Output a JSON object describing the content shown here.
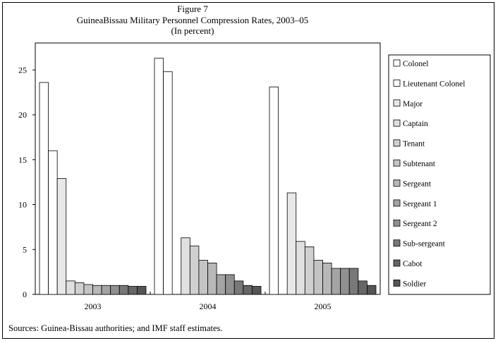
{
  "figure_label": "Figure 7",
  "source_note": "Sources: Guinea-Bissau authorities; and IMF staff estimates.",
  "chart_data": {
    "type": "bar",
    "title": "GuineaBissau Military Personnel Compression Rates, 2003–05",
    "subtitle": "(In percent)",
    "xlabel": "",
    "ylabel": "",
    "ylim": [
      0,
      28
    ],
    "yticks": [
      0,
      5,
      10,
      15,
      20,
      25
    ],
    "grid": false,
    "legend_position": "right",
    "categories": [
      "2003",
      "2004",
      "2005"
    ],
    "series": [
      {
        "name": "Colonel",
        "color": "#ffffff",
        "values": [
          23.6,
          26.3,
          23.1
        ]
      },
      {
        "name": "Lieutenant Colonel",
        "color": "#ffffff",
        "values": [
          16.0,
          24.8,
          0
        ]
      },
      {
        "name": "Major",
        "color": "#e8e8e8",
        "values": [
          12.9,
          0,
          11.3
        ]
      },
      {
        "name": "Captain",
        "color": "#e0e0e0",
        "values": [
          1.5,
          6.3,
          5.9
        ]
      },
      {
        "name": "Tenant",
        "color": "#d0d0d0",
        "values": [
          1.3,
          5.4,
          5.3
        ]
      },
      {
        "name": "Subtenant",
        "color": "#c4c4c4",
        "values": [
          1.1,
          3.8,
          3.8
        ]
      },
      {
        "name": "Sergeant",
        "color": "#b8b8b8",
        "values": [
          1.0,
          3.5,
          3.5
        ]
      },
      {
        "name": "Sergeant 1",
        "color": "#a4a4a4",
        "values": [
          1.0,
          2.2,
          2.9
        ]
      },
      {
        "name": "Sergeant 2",
        "color": "#909090",
        "values": [
          1.0,
          2.2,
          2.9
        ]
      },
      {
        "name": "Sub-sergeant",
        "color": "#787878",
        "values": [
          1.0,
          1.5,
          2.9
        ]
      },
      {
        "name": "Cabot",
        "color": "#666666",
        "values": [
          0.9,
          1.0,
          1.5
        ]
      },
      {
        "name": "Soldier",
        "color": "#555555",
        "values": [
          0.9,
          0.9,
          1.0
        ]
      }
    ]
  }
}
